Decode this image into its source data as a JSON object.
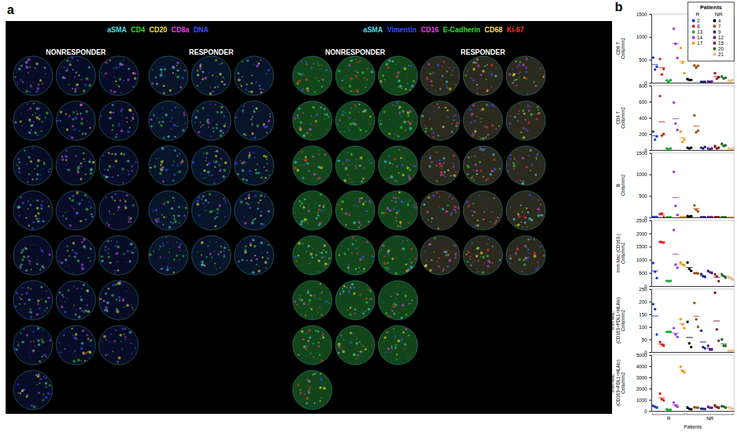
{
  "panel_a": {
    "label": "a",
    "images": [
      {
        "markers": [
          {
            "text": "aSMA",
            "color": "#4fd8e0"
          },
          {
            "text": "CD4",
            "color": "#33d633"
          },
          {
            "text": "CD20",
            "color": "#f0e030"
          },
          {
            "text": "CD8a",
            "color": "#e040e0"
          },
          {
            "text": "DNA",
            "color": "#3a4dff"
          }
        ],
        "columns": [
          {
            "title": "NONRESPONDER",
            "cores": 22
          },
          {
            "title": "RESPONDER",
            "cores": 15
          }
        ]
      },
      {
        "markers": [
          {
            "text": "aSMA",
            "color": "#4fd8e0"
          },
          {
            "text": "Vimentin",
            "color": "#3a4dff"
          },
          {
            "text": "CD16",
            "color": "#e040e0"
          },
          {
            "text": "E-Cadherin",
            "color": "#33d633"
          },
          {
            "text": "CD68",
            "color": "#f0e030"
          },
          {
            "text": "Ki-67",
            "color": "#ff3030"
          }
        ],
        "columns": [
          {
            "title": "NONRESPONDER",
            "cores": 22
          },
          {
            "title": "RESPONDER",
            "cores": 15
          }
        ]
      }
    ]
  },
  "panel_b": {
    "label": "b"
  },
  "chart_data": [
    {
      "type": "scatter",
      "ylabel": [
        "CD8 T",
        "Cells/mm2"
      ],
      "ylim": [
        0,
        1500
      ],
      "yticks": [
        0,
        500,
        1000,
        1500
      ],
      "x_groups": [
        "R",
        "NR"
      ],
      "tick_labels": "y",
      "legend": "top-right",
      "legend_title": "Patients",
      "series": [
        {
          "name": "2",
          "group": "R",
          "color": "#1f3fd6",
          "values": [
            550,
            290,
            350
          ],
          "mean": 397
        },
        {
          "name": "8",
          "group": "R",
          "color": "#e8231f",
          "values": [
            520,
            180,
            300
          ],
          "mean": 333
        },
        {
          "name": "13",
          "group": "R",
          "color": "#1fae3a",
          "values": [
            50,
            20,
            60
          ],
          "mean": 43
        },
        {
          "name": "14",
          "group": "R",
          "color": "#9b3fd6",
          "values": [
            1180,
            850,
            540
          ],
          "mean": 857
        },
        {
          "name": "17",
          "group": "R",
          "color": "#f39a26",
          "values": [
            760,
            440,
            210
          ],
          "mean": 470
        },
        {
          "name": "4",
          "group": "NR",
          "color": "#000000",
          "values": [
            80,
            60,
            60
          ],
          "mean": 67
        },
        {
          "name": "7",
          "group": "NR",
          "color": "#a0521d",
          "values": [
            380,
            330,
            370
          ],
          "mean": 360
        },
        {
          "name": "9",
          "group": "NR",
          "color": "#1b2a8c",
          "values": [
            20,
            20,
            20
          ],
          "mean": 20
        },
        {
          "name": "12",
          "group": "NR",
          "color": "#5b1f8a",
          "values": [
            30,
            20,
            30
          ],
          "mean": 27
        },
        {
          "name": "15",
          "group": "NR",
          "color": "#8b1a1a",
          "values": [
            210,
            90,
            120
          ],
          "mean": 140
        },
        {
          "name": "20",
          "group": "NR",
          "color": "#1f6b2a",
          "values": [
            140,
            90,
            110
          ],
          "mean": 113
        },
        {
          "name": "21",
          "group": "NR",
          "color": "#f5b97a",
          "values": [
            50,
            40,
            60
          ],
          "mean": 50
        }
      ]
    },
    {
      "type": "scatter",
      "ylabel": [
        "CD4 T",
        "Cells/mm2"
      ],
      "ylim": [
        0,
        800
      ],
      "yticks": [
        0,
        200,
        400,
        600,
        800
      ],
      "x_groups": [
        "R",
        "NR"
      ],
      "tick_labels": "y",
      "series": [
        {
          "name": "2",
          "group": "R",
          "color": "#1f3fd6",
          "values": [
            230,
            130,
            170
          ],
          "mean": 177
        },
        {
          "name": "8",
          "group": "R",
          "color": "#e8231f",
          "values": [
            670,
            180,
            200
          ],
          "mean": 350
        },
        {
          "name": "13",
          "group": "R",
          "color": "#1fae3a",
          "values": [
            20,
            10,
            20
          ],
          "mean": 17
        },
        {
          "name": "14",
          "group": "R",
          "color": "#9b3fd6",
          "values": [
            590,
            330,
            250
          ],
          "mean": 390
        },
        {
          "name": "17",
          "group": "R",
          "color": "#f39a26",
          "values": [
            230,
            100,
            130
          ],
          "mean": 153
        },
        {
          "name": "4",
          "group": "NR",
          "color": "#000000",
          "values": [
            30,
            20,
            30
          ],
          "mean": 27
        },
        {
          "name": "7",
          "group": "NR",
          "color": "#a0521d",
          "values": [
            430,
            220,
            240
          ],
          "mean": 297
        },
        {
          "name": "9",
          "group": "NR",
          "color": "#1b2a8c",
          "values": [
            30,
            20,
            40
          ],
          "mean": 30
        },
        {
          "name": "12",
          "group": "NR",
          "color": "#5b1f8a",
          "values": [
            20,
            10,
            20
          ],
          "mean": 17
        },
        {
          "name": "15",
          "group": "NR",
          "color": "#8b1a1a",
          "values": [
            50,
            20,
            30
          ],
          "mean": 33
        },
        {
          "name": "20",
          "group": "NR",
          "color": "#1f6b2a",
          "values": [
            80,
            50,
            60
          ],
          "mean": 63
        },
        {
          "name": "21",
          "group": "NR",
          "color": "#f5b97a",
          "values": [
            20,
            10,
            20
          ],
          "mean": 17
        }
      ]
    },
    {
      "type": "scatter",
      "ylabel": [
        "B",
        "Cells/mm2"
      ],
      "ylim": [
        0,
        1500
      ],
      "yticks": [
        0,
        500,
        1000,
        1500
      ],
      "x_groups": [
        "R",
        "NR"
      ],
      "tick_labels": "y",
      "series": [
        {
          "name": "2",
          "group": "R",
          "color": "#1f3fd6",
          "values": [
            10,
            10,
            10
          ],
          "mean": 10
        },
        {
          "name": "8",
          "group": "R",
          "color": "#e8231f",
          "values": [
            80,
            90,
            10
          ],
          "mean": 60
        },
        {
          "name": "13",
          "group": "R",
          "color": "#1fae3a",
          "values": [
            5,
            5,
            5
          ],
          "mean": 5
        },
        {
          "name": "14",
          "group": "R",
          "color": "#9b3fd6",
          "values": [
            1060,
            270,
            60
          ],
          "mean": 463
        },
        {
          "name": "17",
          "group": "R",
          "color": "#f39a26",
          "values": [
            5,
            5,
            5
          ],
          "mean": 5
        },
        {
          "name": "4",
          "group": "NR",
          "color": "#000000",
          "values": [
            30,
            20,
            30
          ],
          "mean": 27
        },
        {
          "name": "7",
          "group": "NR",
          "color": "#a0521d",
          "values": [
            280,
            180,
            140
          ],
          "mean": 200
        },
        {
          "name": "9",
          "group": "NR",
          "color": "#1b2a8c",
          "values": [
            5,
            5,
            5
          ],
          "mean": 5
        },
        {
          "name": "12",
          "group": "NR",
          "color": "#5b1f8a",
          "values": [
            10,
            5,
            10
          ],
          "mean": 8
        },
        {
          "name": "15",
          "group": "NR",
          "color": "#8b1a1a",
          "values": [
            5,
            5,
            5
          ],
          "mean": 5
        },
        {
          "name": "20",
          "group": "NR",
          "color": "#1f6b2a",
          "values": [
            5,
            5,
            5
          ],
          "mean": 5
        },
        {
          "name": "21",
          "group": "NR",
          "color": "#f5b97a",
          "values": [
            5,
            5,
            5
          ],
          "mean": 5
        }
      ]
    },
    {
      "type": "scatter",
      "ylabel": [
        "Imm Mac (CD163-)",
        "Cells/mm2"
      ],
      "ylim": [
        0,
        2500
      ],
      "yticks": [
        0,
        500,
        1000,
        1500,
        2000,
        2500
      ],
      "x_groups": [
        "R",
        "NR"
      ],
      "tick_labels": "y",
      "series": [
        {
          "name": "2",
          "group": "R",
          "color": "#1f3fd6",
          "values": [
            880,
            550,
            310
          ],
          "mean": 580
        },
        {
          "name": "8",
          "group": "R",
          "color": "#e8231f",
          "values": [
            1680,
            1670,
            1650
          ],
          "mean": 1667
        },
        {
          "name": "13",
          "group": "R",
          "color": "#1fae3a",
          "values": [
            200,
            190,
            200
          ],
          "mean": 197
        },
        {
          "name": "14",
          "group": "R",
          "color": "#9b3fd6",
          "values": [
            2130,
            820,
            700
          ],
          "mean": 1217
        },
        {
          "name": "17",
          "group": "R",
          "color": "#f39a26",
          "values": [
            900,
            820,
            780
          ],
          "mean": 833
        },
        {
          "name": "4",
          "group": "NR",
          "color": "#000000",
          "values": [
            900,
            650,
            580
          ],
          "mean": 710
        },
        {
          "name": "7",
          "group": "NR",
          "color": "#a0521d",
          "values": [
            490,
            500,
            480
          ],
          "mean": 490
        },
        {
          "name": "9",
          "group": "NR",
          "color": "#1b2a8c",
          "values": [
            460,
            380,
            350
          ],
          "mean": 397
        },
        {
          "name": "12",
          "group": "NR",
          "color": "#5b1f8a",
          "values": [
            580,
            530,
            500
          ],
          "mean": 537
        },
        {
          "name": "15",
          "group": "NR",
          "color": "#8b1a1a",
          "values": [
            450,
            370,
            190
          ],
          "mean": 337
        },
        {
          "name": "20",
          "group": "NR",
          "color": "#1f6b2a",
          "values": [
            450,
            380,
            320
          ],
          "mean": 383
        },
        {
          "name": "21",
          "group": "NR",
          "color": "#f5b97a",
          "values": [
            360,
            310,
            250
          ],
          "mean": 307
        }
      ]
    },
    {
      "type": "scatter",
      "ylabel": [
        "Imm Mac",
        "(CD163+PDL1+HLAhi)",
        "Cells/mm2"
      ],
      "ylim": [
        0,
        250
      ],
      "yticks": [
        0,
        50,
        100,
        150,
        200,
        250
      ],
      "x_groups": [
        "R",
        "NR"
      ],
      "tick_labels": "y",
      "series": [
        {
          "name": "2",
          "group": "R",
          "color": "#1f3fd6",
          "values": [
            190,
            170,
            70
          ],
          "mean": 143
        },
        {
          "name": "8",
          "group": "R",
          "color": "#e8231f",
          "values": [
            40,
            30,
            25
          ],
          "mean": 32
        },
        {
          "name": "13",
          "group": "R",
          "color": "#1fae3a",
          "values": [
            80,
            80,
            80
          ],
          "mean": 80
        },
        {
          "name": "14",
          "group": "R",
          "color": "#9b3fd6",
          "values": [
            95,
            70,
            60
          ],
          "mean": 75
        },
        {
          "name": "17",
          "group": "R",
          "color": "#f39a26",
          "values": [
            130,
            110,
            95
          ],
          "mean": 112
        },
        {
          "name": "4",
          "group": "NR",
          "color": "#000000",
          "values": [
            120,
            35,
            20
          ],
          "mean": 58
        },
        {
          "name": "7",
          "group": "NR",
          "color": "#a0521d",
          "values": [
            195,
            130,
            100
          ],
          "mean": 142
        },
        {
          "name": "9",
          "group": "NR",
          "color": "#1b2a8c",
          "values": [
            85,
            20,
            15
          ],
          "mean": 40
        },
        {
          "name": "12",
          "group": "NR",
          "color": "#5b1f8a",
          "values": [
            25,
            10,
            10
          ],
          "mean": 15
        },
        {
          "name": "15",
          "group": "NR",
          "color": "#8b1a1a",
          "values": [
            235,
            90,
            45
          ],
          "mean": 123
        },
        {
          "name": "20",
          "group": "NR",
          "color": "#1f6b2a",
          "values": [
            50,
            25,
            25
          ],
          "mean": 33
        },
        {
          "name": "21",
          "group": "NR",
          "color": "#f5b97a",
          "values": [
            5,
            5,
            5
          ],
          "mean": 5
        }
      ]
    },
    {
      "type": "scatter",
      "ylabel": [
        "Imm Mac",
        "(CD163+PDL1+HLAlo)",
        "Cells/mm2"
      ],
      "ylim": [
        0,
        5000
      ],
      "yticks": [
        0,
        1000,
        2000,
        3000,
        4000,
        5000
      ],
      "x_groups": [
        "R",
        "NR"
      ],
      "tick_labels": "y",
      "xlabel": "Patients",
      "series": [
        {
          "name": "2",
          "group": "R",
          "color": "#1f3fd6",
          "values": [
            480,
            380,
            300
          ],
          "mean": 387
        },
        {
          "name": "8",
          "group": "R",
          "color": "#e8231f",
          "values": [
            1550,
            1050,
            950
          ],
          "mean": 1183
        },
        {
          "name": "13",
          "group": "R",
          "color": "#1fae3a",
          "values": [
            140,
            100,
            120
          ],
          "mean": 120
        },
        {
          "name": "14",
          "group": "R",
          "color": "#9b3fd6",
          "values": [
            760,
            500,
            380
          ],
          "mean": 547
        },
        {
          "name": "17",
          "group": "R",
          "color": "#f39a26",
          "values": [
            3950,
            3550,
            3450
          ],
          "mean": 3650
        },
        {
          "name": "4",
          "group": "NR",
          "color": "#000000",
          "values": [
            320,
            200,
            150
          ],
          "mean": 223
        },
        {
          "name": "7",
          "group": "NR",
          "color": "#a0521d",
          "values": [
            330,
            310,
            300
          ],
          "mean": 313
        },
        {
          "name": "9",
          "group": "NR",
          "color": "#1b2a8c",
          "values": [
            210,
            200,
            180
          ],
          "mean": 197
        },
        {
          "name": "12",
          "group": "NR",
          "color": "#5b1f8a",
          "values": [
            380,
            300,
            280
          ],
          "mean": 320
        },
        {
          "name": "15",
          "group": "NR",
          "color": "#8b1a1a",
          "values": [
            500,
            350,
            280
          ],
          "mean": 377
        },
        {
          "name": "20",
          "group": "NR",
          "color": "#1f6b2a",
          "values": [
            440,
            400,
            300
          ],
          "mean": 380
        },
        {
          "name": "21",
          "group": "NR",
          "color": "#f5b97a",
          "values": [
            330,
            250,
            200
          ],
          "mean": 260
        }
      ]
    }
  ]
}
